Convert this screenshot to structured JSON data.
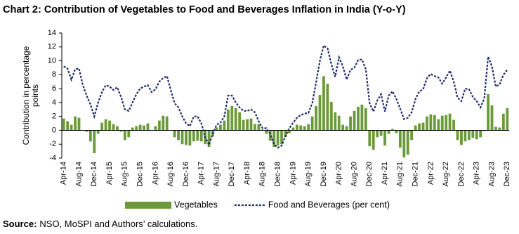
{
  "chart_data": {
    "type": "bar-line",
    "title": "Chart 2: Contribution of Vegetables to Food and Beverages Inflation in India (Y-o-Y)",
    "ylabel": [
      "Contribution in percentage",
      "points"
    ],
    "source": {
      "label": "Source:",
      "text": "NSO, MoSPI and Authors’ calculations."
    },
    "categories": [
      "Apr-14",
      null,
      null,
      null,
      "Aug-14",
      null,
      null,
      null,
      "Dec-14",
      null,
      null,
      null,
      "Apr-15",
      null,
      null,
      null,
      "Aug-15",
      null,
      null,
      null,
      "Dec-15",
      null,
      null,
      null,
      "Apr-16",
      null,
      null,
      null,
      "Aug-16",
      null,
      null,
      null,
      "Dec-16",
      null,
      null,
      null,
      "Apr-17",
      null,
      null,
      null,
      "Aug-17",
      null,
      null,
      null,
      "Dec-17",
      null,
      null,
      null,
      "Apr-18",
      null,
      null,
      null,
      "Aug-18",
      null,
      null,
      null,
      "Dec-18",
      null,
      null,
      null,
      "Apr-19",
      null,
      null,
      null,
      "Aug-19",
      null,
      null,
      null,
      "Dec-19",
      null,
      null,
      null,
      "Apr-20",
      null,
      null,
      null,
      "Aug-20",
      null,
      null,
      null,
      "Dec-20",
      null,
      null,
      null,
      "Apr-21",
      null,
      null,
      null,
      "Aug-21",
      null,
      null,
      null,
      "Dec-21",
      null,
      null,
      null,
      "Apr-22",
      null,
      null,
      null,
      "Aug-22",
      null,
      null,
      null,
      "Dec-22",
      null,
      null,
      null,
      "Apr-23",
      null,
      null,
      null,
      "Aug-23",
      null,
      null,
      null,
      "Dec-23"
    ],
    "series": [
      {
        "name": "Vegetables",
        "type": "bar",
        "color": "#6b9a3a",
        "values": [
          1.7,
          1.3,
          0.8,
          2.0,
          1.8,
          0.0,
          -0.2,
          -1.6,
          -3.3,
          -0.5,
          1.1,
          1.6,
          1.4,
          0.9,
          0.6,
          -0.2,
          -1.4,
          -1.0,
          0.4,
          0.6,
          0.8,
          0.7,
          1.0,
          0.0,
          0.6,
          1.4,
          2.1,
          2.0,
          0.0,
          -1.0,
          -1.4,
          -2.0,
          -2.1,
          -2.2,
          -1.6,
          -1.5,
          -1.6,
          -2.0,
          -2.4,
          -0.9,
          0.4,
          0.8,
          1.4,
          3.0,
          3.5,
          3.2,
          2.6,
          1.5,
          1.6,
          1.7,
          0.9,
          0.9,
          0.1,
          -0.5,
          -1.5,
          -2.4,
          -2.2,
          -2.0,
          -1.0,
          -0.4,
          0.4,
          0.8,
          0.7,
          0.6,
          0.9,
          2.0,
          3.5,
          5.1,
          7.8,
          6.7,
          4.1,
          2.6,
          2.1,
          0.8,
          0.6,
          2.0,
          2.8,
          3.4,
          3.7,
          3.2,
          -2.3,
          -2.8,
          -1.0,
          -0.8,
          -2.2,
          -0.5,
          0.2,
          -0.4,
          -2.5,
          -3.9,
          -3.5,
          -1.4,
          0.7,
          1.0,
          1.1,
          2.0,
          2.3,
          2.2,
          1.6,
          2.1,
          2.2,
          2.4,
          1.5,
          -1.4,
          -2.1,
          -1.6,
          -1.4,
          -1.1,
          -1.3,
          -1.0,
          -0.1,
          5.2,
          3.6,
          0.5,
          0.4,
          2.4,
          3.2
        ]
      },
      {
        "name": "Food and Beverages (per cent)",
        "type": "line",
        "color": "#1f2a6b",
        "values": [
          9.2,
          8.9,
          7.3,
          8.8,
          8.9,
          6.5,
          5.0,
          3.7,
          2.0,
          4.0,
          5.5,
          6.5,
          6.3,
          5.8,
          6.2,
          4.8,
          3.0,
          2.8,
          4.0,
          5.2,
          6.0,
          6.3,
          6.5,
          5.5,
          5.9,
          7.0,
          7.5,
          7.8,
          5.8,
          3.9,
          3.3,
          2.0,
          1.0,
          0.6,
          2.0,
          2.0,
          1.0,
          -1.0,
          -2.1,
          -0.4,
          0.8,
          1.1,
          2.0,
          5.0,
          5.0,
          4.0,
          3.3,
          2.8,
          2.8,
          3.0,
          2.6,
          1.3,
          0.3,
          0.3,
          -0.5,
          -2.0,
          -2.5,
          -2.2,
          -0.8,
          0.3,
          1.1,
          1.8,
          2.2,
          2.4,
          2.5,
          3.9,
          6.9,
          10.0,
          12.2,
          11.8,
          9.5,
          7.7,
          10.5,
          9.2,
          7.3,
          8.7,
          9.0,
          10.1,
          10.2,
          8.8,
          3.9,
          2.7,
          4.3,
          5.2,
          2.7,
          5.0,
          5.6,
          4.5,
          3.1,
          1.6,
          1.8,
          2.6,
          4.5,
          5.6,
          5.9,
          7.5,
          8.1,
          7.8,
          7.6,
          6.7,
          7.6,
          8.6,
          7.0,
          4.7,
          4.2,
          6.0,
          5.9,
          4.8,
          4.2,
          3.3,
          4.6,
          10.6,
          9.2,
          6.3,
          6.6,
          8.0,
          8.7
        ]
      }
    ],
    "ylim": [
      -4,
      14
    ],
    "yticks": [
      -4,
      -2,
      0,
      2,
      4,
      6,
      8,
      10,
      12,
      14
    ]
  }
}
